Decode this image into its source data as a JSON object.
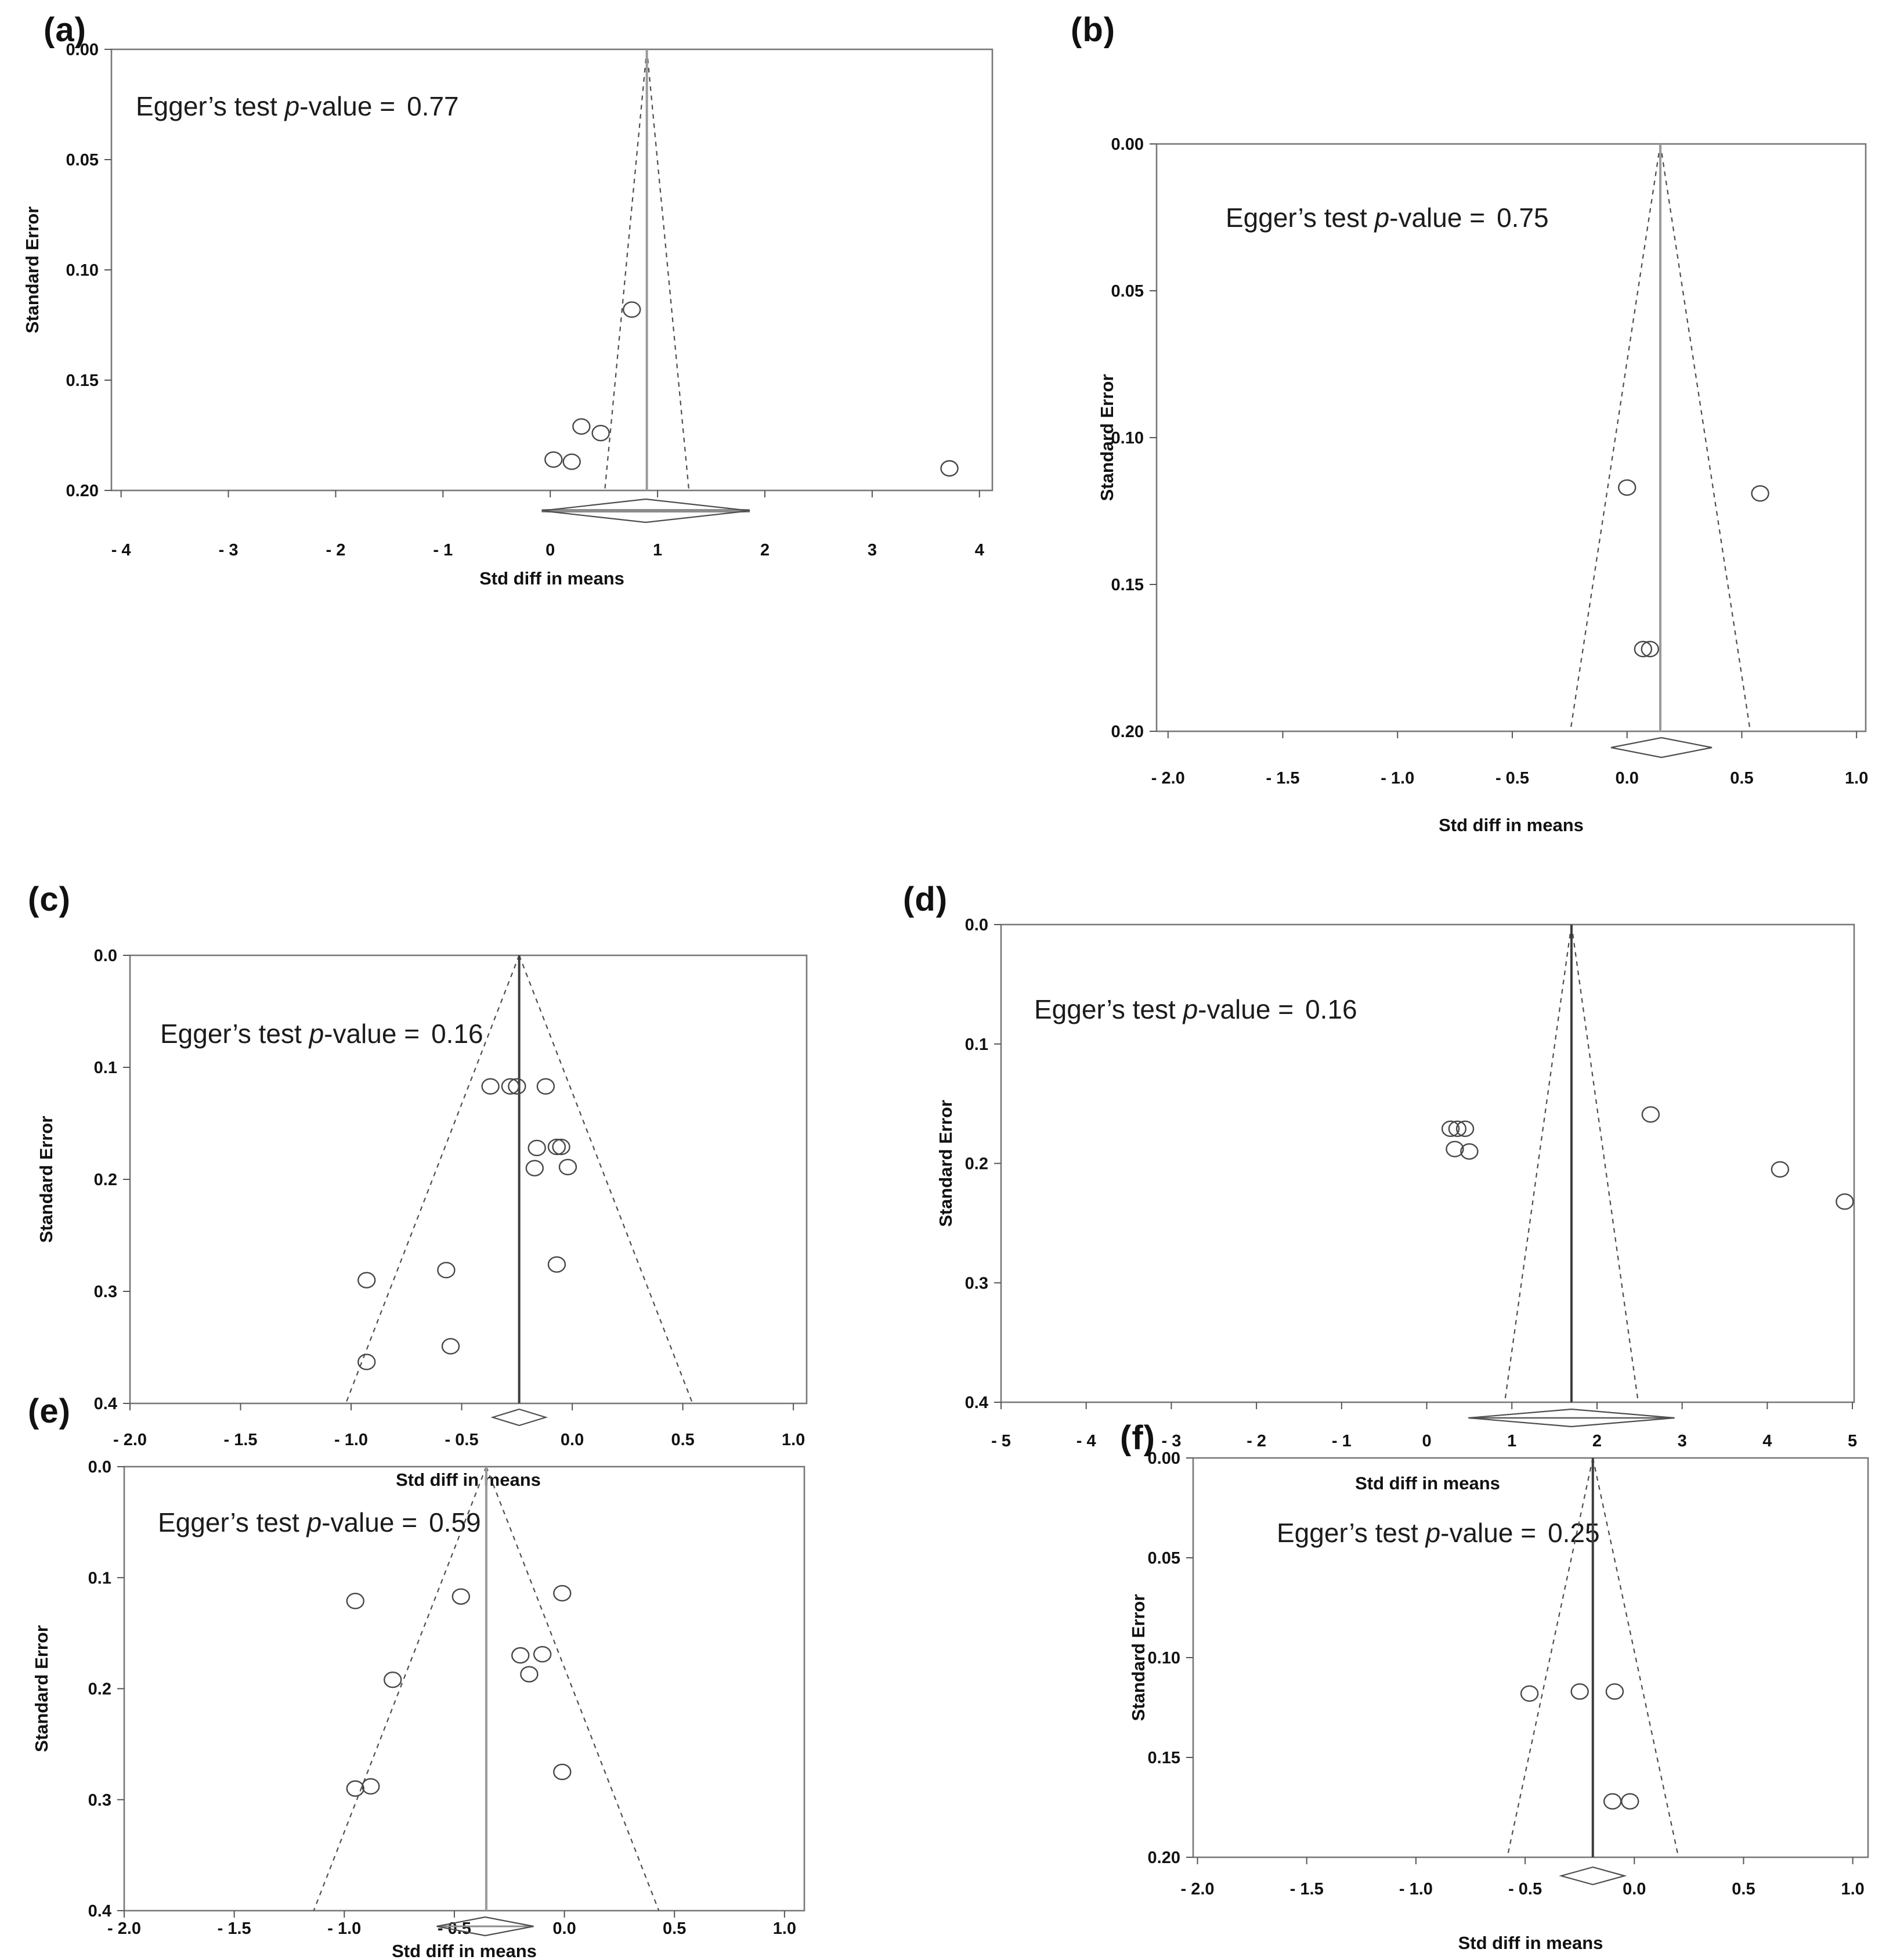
{
  "figure": {
    "background": "#ffffff",
    "ylabel": "Standard Error",
    "xlabel": "Std diff in means"
  },
  "chart_data": [
    {
      "type": "scatter",
      "subtype": "funnel-plot",
      "panel_label": "(a)",
      "xlabel": "Std diff in means",
      "ylabel": "Standard Error",
      "egger_prefix": "Egger’s test ",
      "egger_p": "p",
      "egger_suffix": "-value =",
      "egger_value": "0.77",
      "x_range": [
        -4.09,
        4.12
      ],
      "y_range": [
        0,
        0.2
      ],
      "x_tick_values": [
        -4,
        -3,
        -2,
        -1,
        0,
        1,
        2,
        3,
        4
      ],
      "x_tick_labels": [
        "- 4",
        "- 3",
        "- 2",
        "- 1",
        "0",
        "1",
        "2",
        "3",
        "4"
      ],
      "y_tick_values": [
        0,
        0.05,
        0.1,
        0.15,
        0.2
      ],
      "y_tick_labels": [
        "0.00",
        "0.05",
        "0.10",
        "0.15",
        "0.20"
      ],
      "funnel_center": 0.9,
      "funnel_ci_multiplier": 1.96,
      "center_line_color": "#9a9a9a",
      "diamond": {
        "center": 0.89,
        "half_width": 0.97,
        "line_through": true
      },
      "points": [
        [
          0.76,
          0.118
        ],
        [
          0.29,
          0.171
        ],
        [
          0.47,
          0.174
        ],
        [
          0.03,
          0.186
        ],
        [
          0.2,
          0.187
        ],
        [
          3.72,
          0.19
        ]
      ]
    },
    {
      "type": "scatter",
      "subtype": "funnel-plot",
      "panel_label": "(b)",
      "xlabel": "Std diff in means",
      "ylabel": "Standard Error",
      "egger_prefix": "Egger’s test ",
      "egger_p": "p",
      "egger_suffix": "-value =",
      "egger_value": "0.75",
      "x_range": [
        -2.05,
        1.04
      ],
      "y_range": [
        0,
        0.2
      ],
      "x_tick_values": [
        -2.0,
        -1.5,
        -1.0,
        -0.5,
        0.0,
        0.5,
        1.0
      ],
      "x_tick_labels": [
        "- 2.0",
        "- 1.5",
        "- 1.0",
        "- 0.5",
        "0.0",
        "0.5",
        "1.0"
      ],
      "y_tick_values": [
        0,
        0.05,
        0.1,
        0.15,
        0.2
      ],
      "y_tick_labels": [
        "0.00",
        "0.05",
        "0.10",
        "0.15",
        "0.20"
      ],
      "funnel_center": 0.145,
      "funnel_ci_multiplier": 1.96,
      "center_line_color": "#9a9a9a",
      "diamond": {
        "center": 0.15,
        "half_width": 0.22,
        "line_through": false
      },
      "points": [
        [
          0.0,
          0.117
        ],
        [
          0.58,
          0.119
        ],
        [
          0.07,
          0.172
        ],
        [
          0.1,
          0.172
        ]
      ]
    },
    {
      "type": "scatter",
      "subtype": "funnel-plot",
      "panel_label": "(c)",
      "xlabel": "Std diff in means",
      "ylabel": "Standard Error",
      "egger_prefix": "Egger’s test ",
      "egger_p": "p",
      "egger_suffix": "-value =",
      "egger_value": "0.16",
      "x_range": [
        -2.0,
        1.06
      ],
      "y_range": [
        0,
        0.4
      ],
      "x_tick_values": [
        -2.0,
        -1.5,
        -1.0,
        -0.5,
        0.0,
        0.5,
        1.0
      ],
      "x_tick_labels": [
        "- 2.0",
        "- 1.5",
        "- 1.0",
        "- 0.5",
        "0.0",
        "0.5",
        "1.0"
      ],
      "y_tick_values": [
        0,
        0.1,
        0.2,
        0.3,
        0.4
      ],
      "y_tick_labels": [
        "0.0",
        "0.1",
        "0.2",
        "0.3",
        "0.4"
      ],
      "funnel_center": -0.24,
      "funnel_ci_multiplier": 1.96,
      "center_line_color": "#3c3c3c",
      "diamond": {
        "center": -0.24,
        "half_width": 0.12,
        "line_through": false
      },
      "points": [
        [
          -0.37,
          0.117
        ],
        [
          -0.28,
          0.117
        ],
        [
          -0.25,
          0.117
        ],
        [
          -0.12,
          0.117
        ],
        [
          -0.16,
          0.172
        ],
        [
          -0.07,
          0.171
        ],
        [
          -0.05,
          0.171
        ],
        [
          -0.17,
          0.19
        ],
        [
          -0.02,
          0.189
        ],
        [
          -0.07,
          0.276
        ],
        [
          -0.57,
          0.281
        ],
        [
          -0.93,
          0.29
        ],
        [
          -0.55,
          0.349
        ],
        [
          -0.93,
          0.363
        ]
      ]
    },
    {
      "type": "scatter",
      "subtype": "funnel-plot",
      "panel_label": "(d)",
      "xlabel": "Std diff in means",
      "ylabel": "Standard Error",
      "egger_prefix": "Egger’s test ",
      "egger_p": "p",
      "egger_suffix": "-value =",
      "egger_value": "0.16",
      "x_range": [
        -5.0,
        5.02
      ],
      "y_range": [
        0,
        0.4
      ],
      "x_tick_values": [
        -5,
        -4,
        -3,
        -2,
        -1,
        0,
        1,
        2,
        3,
        4,
        5
      ],
      "x_tick_labels": [
        "- 5",
        "- 4",
        "- 3",
        "- 2",
        "- 1",
        "0",
        "1",
        "2",
        "3",
        "4",
        "5"
      ],
      "y_tick_values": [
        0,
        0.1,
        0.2,
        0.3,
        0.4
      ],
      "y_tick_labels": [
        "0.0",
        "0.1",
        "0.2",
        "0.3",
        "0.4"
      ],
      "funnel_center": 1.7,
      "funnel_ci_multiplier": 1.96,
      "center_line_color": "#3c3c3c",
      "diamond": {
        "center": 1.7,
        "half_width": 1.21,
        "line_through": true
      },
      "points": [
        [
          2.63,
          0.159
        ],
        [
          0.28,
          0.171
        ],
        [
          0.36,
          0.171
        ],
        [
          0.45,
          0.171
        ],
        [
          0.33,
          0.188
        ],
        [
          0.5,
          0.19
        ],
        [
          4.15,
          0.205
        ],
        [
          4.91,
          0.232
        ]
      ]
    },
    {
      "type": "scatter",
      "subtype": "funnel-plot",
      "panel_label": "(e)",
      "xlabel": "Std diff in means",
      "ylabel": "Standard Error",
      "egger_prefix": "Egger’s test ",
      "egger_p": "p",
      "egger_suffix": "-value =",
      "egger_value": "0.59",
      "x_range": [
        -2.0,
        1.09
      ],
      "y_range": [
        0,
        0.4
      ],
      "x_tick_values": [
        -2.0,
        -1.5,
        -1.0,
        -0.5,
        0.0,
        0.5,
        1.0
      ],
      "x_tick_labels": [
        "- 2.0",
        "- 1.5",
        "- 1.0",
        "- 0.5",
        "0.0",
        "0.5",
        "1.0"
      ],
      "y_tick_values": [
        0,
        0.1,
        0.2,
        0.3,
        0.4
      ],
      "y_tick_labels": [
        "0.0",
        "0.1",
        "0.2",
        "0.3",
        "0.4"
      ],
      "funnel_center": -0.355,
      "funnel_ci_multiplier": 1.96,
      "center_line_color": "#9a9a9a",
      "diamond": {
        "center": -0.36,
        "half_width": 0.22,
        "line_through": true
      },
      "points": [
        [
          -0.95,
          0.121
        ],
        [
          -0.47,
          0.117
        ],
        [
          -0.01,
          0.114
        ],
        [
          -0.2,
          0.17
        ],
        [
          -0.1,
          0.169
        ],
        [
          -0.16,
          0.187
        ],
        [
          -0.78,
          0.192
        ],
        [
          -0.01,
          0.275
        ],
        [
          -0.95,
          0.29
        ],
        [
          -0.88,
          0.288
        ]
      ]
    },
    {
      "type": "scatter",
      "subtype": "funnel-plot",
      "panel_label": "(f)",
      "xlabel": "Std diff in means",
      "ylabel": "Standard Error",
      "egger_prefix": "Egger’s test ",
      "egger_p": "p",
      "egger_suffix": "-value =",
      "egger_value": "0.25",
      "x_range": [
        -2.02,
        1.07
      ],
      "y_range": [
        0,
        0.2
      ],
      "x_tick_values": [
        -2.0,
        -1.5,
        -1.0,
        -0.5,
        0.0,
        0.5,
        1.0
      ],
      "x_tick_labels": [
        "- 2.0",
        "- 1.5",
        "- 1.0",
        "- 0.5",
        "0.0",
        "0.5",
        "1.0"
      ],
      "y_tick_values": [
        0,
        0.05,
        0.1,
        0.15,
        0.2
      ],
      "y_tick_labels": [
        "0.00",
        "0.05",
        "0.10",
        "0.15",
        "0.20"
      ],
      "funnel_center": -0.19,
      "funnel_ci_multiplier": 1.96,
      "center_line_color": "#3c3c3c",
      "diamond": {
        "center": -0.19,
        "half_width": 0.145,
        "line_through": false
      },
      "points": [
        [
          -0.48,
          0.118
        ],
        [
          -0.25,
          0.117
        ],
        [
          -0.09,
          0.117
        ],
        [
          -0.1,
          0.172
        ],
        [
          -0.02,
          0.172
        ]
      ]
    }
  ]
}
